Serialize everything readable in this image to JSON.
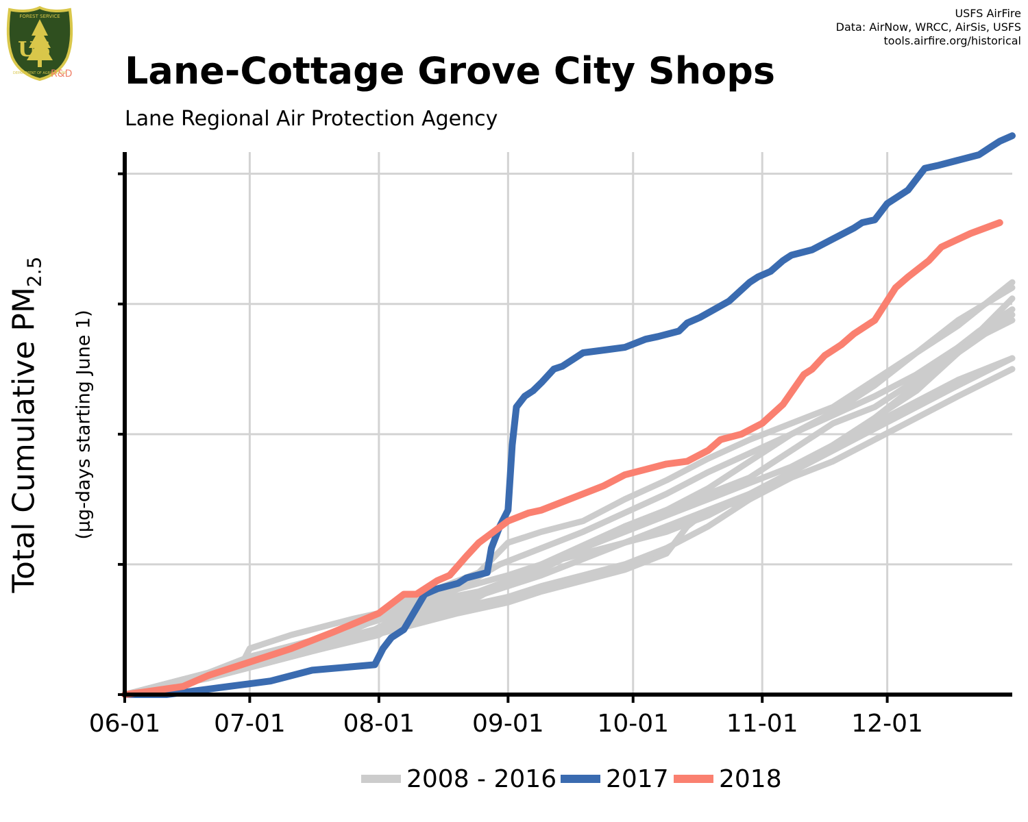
{
  "header": {
    "title": "Lane-Cottage Grove City Shops",
    "subtitle": "Lane Regional Air Protection Agency",
    "credits": [
      "USFS AirFire",
      "Data: AirNow, WRCC, AirSis, USFS",
      "tools.airfire.org/historical"
    ]
  },
  "logo": {
    "top_text": "FOREST SERVICE",
    "letters": "US",
    "bottom_text": "DEPARTMENT OF AGRICULTURE",
    "rd": "R&D",
    "colors": {
      "shield": "#2f4f1f",
      "rim": "#d9c74a",
      "rd": "#f0826a"
    }
  },
  "colors": {
    "history": "#cccccc",
    "y2017": "#3a6bb0",
    "y2018": "#fa8070",
    "grid": "#d3d3d3",
    "axis": "#000000"
  },
  "chart_data": {
    "type": "line",
    "title": "Lane-Cottage Grove City Shops",
    "subtitle": "Lane Regional Air Protection Agency",
    "ylabel_main": "Total Cumulative PM",
    "ylabel_subscript": "2.5",
    "ylabel_units": "(µg-days starting June 1)",
    "x_tick_labels": [
      "06-01",
      "07-01",
      "08-01",
      "09-01",
      "10-01",
      "11-01",
      "12-01"
    ],
    "x_tick_days": [
      0,
      30,
      61,
      92,
      122,
      153,
      183
    ],
    "xlim_days": [
      0,
      213
    ],
    "ylim": [
      0,
      100
    ],
    "y_gridlines": [
      0,
      24,
      48,
      72,
      96
    ],
    "y_tick_labels_shown": false,
    "legend_position": "bottom",
    "legend": [
      "2008 - 2016",
      "2017",
      "2018"
    ],
    "series": [
      {
        "name": "2017",
        "color": "#3a6bb0",
        "x": [
          0,
          10,
          20,
          25,
          35,
          45,
          60,
          62,
          64,
          67,
          72,
          75,
          80,
          82,
          87,
          88,
          90,
          92,
          93,
          94,
          96,
          98,
          100,
          103,
          105,
          110,
          120,
          125,
          128,
          133,
          135,
          138,
          145,
          150,
          152,
          155,
          158,
          160,
          165,
          170,
          175,
          177,
          180,
          183,
          188,
          192,
          195,
          200,
          205,
          208,
          210,
          213
        ],
        "y": [
          0,
          0,
          1,
          1.5,
          2.5,
          4.5,
          5.5,
          8.5,
          10.5,
          12,
          18.5,
          19.5,
          20.5,
          21.5,
          22.5,
          27,
          31,
          34,
          46,
          53,
          55,
          56,
          57.5,
          60,
          60.5,
          63,
          64,
          65.5,
          66,
          67,
          68.5,
          69.5,
          72.5,
          76,
          77,
          78,
          80,
          81,
          82,
          84,
          86,
          87,
          87.5,
          90.5,
          93,
          97,
          97.5,
          98.5,
          99.5,
          101,
          102,
          103
        ]
      },
      {
        "name": "2018",
        "color": "#fa8070",
        "x": [
          0,
          5,
          14,
          20,
          30,
          40,
          50,
          61,
          67,
          70,
          75,
          78,
          82,
          85,
          92,
          97,
          100,
          105,
          110,
          115,
          120,
          125,
          130,
          135,
          140,
          143,
          148,
          153,
          158,
          163,
          165,
          168,
          172,
          175,
          180,
          185,
          188,
          193,
          196,
          203,
          210
        ],
        "y": [
          0,
          0.5,
          1.5,
          3.5,
          6,
          8.5,
          11.5,
          15,
          18.5,
          18.5,
          21,
          22,
          25.5,
          28,
          32,
          33.5,
          34,
          35.5,
          37,
          38.5,
          40.5,
          41.5,
          42.5,
          43,
          45,
          47,
          48,
          50,
          53.5,
          59,
          60,
          62.5,
          64.5,
          66.5,
          69,
          75,
          77,
          80,
          82.5,
          85,
          87
        ]
      },
      {
        "name": "",
        "color": "#cccccc",
        "x": [
          0,
          15,
          25,
          30,
          45,
          55,
          60,
          65,
          70,
          75,
          85,
          92,
          100,
          110,
          120,
          130,
          140,
          150,
          160,
          170,
          180,
          190,
          200,
          205,
          213
        ],
        "y": [
          0,
          3,
          4.5,
          6.5,
          10,
          12.5,
          14,
          16,
          17,
          17.5,
          19,
          21,
          24,
          27.5,
          31,
          34,
          37,
          40,
          45,
          50,
          53,
          58,
          64,
          67,
          71
        ]
      },
      {
        "name": "",
        "color": "#cccccc",
        "x": [
          0,
          20,
          28,
          30,
          40,
          55,
          61,
          65,
          70,
          75,
          85,
          92,
          100,
          110,
          120,
          130,
          140,
          150,
          160,
          170,
          180,
          190,
          200,
          213
        ],
        "y": [
          0,
          4,
          5.5,
          8.5,
          11,
          14,
          15,
          17,
          18,
          19.5,
          22.5,
          28,
          30,
          32,
          36,
          39.5,
          43.5,
          47,
          50,
          53,
          58,
          63,
          68,
          76
        ]
      },
      {
        "name": "",
        "color": "#cccccc",
        "x": [
          0,
          20,
          30,
          45,
          60,
          70,
          80,
          85,
          92,
          100,
          110,
          120,
          130,
          140,
          150,
          160,
          170,
          180,
          190,
          200,
          213
        ],
        "y": [
          0,
          3,
          5,
          8,
          11,
          13.5,
          16,
          18,
          21,
          23,
          27,
          31,
          34,
          38,
          43,
          48,
          52,
          57,
          63,
          69,
          75
        ]
      },
      {
        "name": "",
        "color": "#cccccc",
        "x": [
          0,
          20,
          30,
          45,
          60,
          70,
          80,
          90,
          100,
          110,
          120,
          130,
          140,
          150,
          160,
          170,
          180,
          190,
          200,
          213
        ],
        "y": [
          0,
          4,
          7,
          10,
          13.5,
          16,
          19.5,
          24,
          27,
          30,
          33.5,
          37,
          41,
          44.5,
          48,
          51.5,
          55,
          59,
          64,
          69
        ]
      },
      {
        "name": "",
        "color": "#cccccc",
        "x": [
          0,
          20,
          30,
          45,
          60,
          65,
          70,
          80,
          92,
          100,
          110,
          120,
          130,
          140,
          150,
          160,
          170,
          180,
          190,
          200,
          213
        ],
        "y": [
          0,
          4,
          6,
          9,
          12,
          14,
          15,
          17,
          20,
          22,
          25,
          28,
          31,
          34,
          37,
          41,
          45,
          49,
          53,
          57,
          62
        ]
      },
      {
        "name": "",
        "color": "#cccccc",
        "x": [
          0,
          20,
          30,
          45,
          60,
          70,
          80,
          92,
          100,
          110,
          120,
          130,
          135,
          140,
          150,
          160,
          170,
          180,
          190,
          200,
          213
        ],
        "y": [
          0,
          3,
          5,
          8,
          11,
          13,
          15,
          17,
          19,
          21,
          23,
          26,
          31,
          34,
          36,
          40,
          43,
          47,
          51,
          55,
          60
        ]
      },
      {
        "name": "",
        "color": "#cccccc",
        "x": [
          0,
          20,
          30,
          45,
          60,
          70,
          80,
          92,
          100,
          110,
          120,
          130,
          140,
          150,
          160,
          170,
          180,
          190,
          200,
          213
        ],
        "y": [
          0,
          3,
          6,
          9,
          12,
          14,
          16,
          18,
          20,
          22,
          24,
          27,
          31,
          36,
          41,
          46,
          51,
          56,
          63,
          73
        ]
      },
      {
        "name": "",
        "color": "#cccccc",
        "x": [
          0,
          15,
          25,
          30,
          45,
          55,
          61,
          65,
          70,
          80,
          92,
          100,
          110,
          120,
          130,
          140,
          150,
          160,
          170,
          180,
          190,
          200,
          213
        ],
        "y": [
          0,
          2.5,
          4,
          6,
          9.5,
          12,
          14,
          15,
          17,
          19.5,
          22,
          24,
          26,
          28,
          30,
          33,
          37,
          41,
          46,
          51,
          57,
          63,
          70
        ]
      },
      {
        "name": "",
        "color": "#cccccc",
        "x": [
          0,
          20,
          30,
          45,
          61,
          65,
          70,
          80,
          92,
          100,
          110,
          120,
          130,
          140,
          150,
          160,
          170,
          180,
          190,
          200,
          213
        ],
        "y": [
          0,
          3,
          5,
          8,
          11,
          13,
          16,
          18,
          20,
          23,
          27,
          30,
          33,
          36,
          39,
          42,
          46,
          50,
          54,
          58,
          62
        ]
      }
    ]
  }
}
